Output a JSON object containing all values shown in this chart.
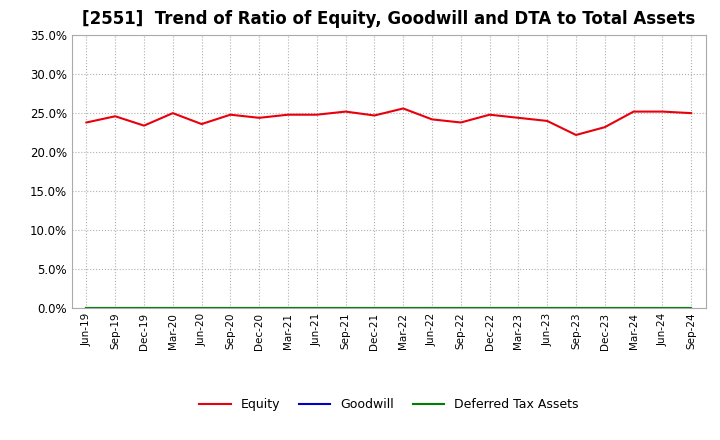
{
  "title": "[2551]  Trend of Ratio of Equity, Goodwill and DTA to Total Assets",
  "x_labels": [
    "Jun-19",
    "Sep-19",
    "Dec-19",
    "Mar-20",
    "Jun-20",
    "Sep-20",
    "Dec-20",
    "Mar-21",
    "Jun-21",
    "Sep-21",
    "Dec-21",
    "Mar-22",
    "Jun-22",
    "Sep-22",
    "Dec-22",
    "Mar-23",
    "Jun-23",
    "Sep-23",
    "Dec-23",
    "Mar-24",
    "Jun-24",
    "Sep-24"
  ],
  "equity": [
    0.238,
    0.246,
    0.234,
    0.25,
    0.236,
    0.248,
    0.244,
    0.248,
    0.248,
    0.252,
    0.247,
    0.256,
    0.242,
    0.238,
    0.248,
    0.244,
    0.24,
    0.222,
    0.232,
    0.252,
    0.252,
    0.25
  ],
  "goodwill": [
    0.0,
    0.0,
    0.0,
    0.0,
    0.0,
    0.0,
    0.0,
    0.0,
    0.0,
    0.0,
    0.0,
    0.0,
    0.0,
    0.0,
    0.0,
    0.0,
    0.0,
    0.0,
    0.0,
    0.0,
    0.0,
    0.0
  ],
  "dta": [
    0.0,
    0.0,
    0.0,
    0.0,
    0.0,
    0.0,
    0.0,
    0.0,
    0.0,
    0.0,
    0.0,
    0.0,
    0.0,
    0.0,
    0.0,
    0.0,
    0.0,
    0.0,
    0.0,
    0.0,
    0.0,
    0.0
  ],
  "equity_color": "#e8000d",
  "goodwill_color": "#0000cc",
  "dta_color": "#008000",
  "ylim": [
    0.0,
    0.35
  ],
  "yticks": [
    0.0,
    0.05,
    0.1,
    0.15,
    0.2,
    0.25,
    0.3,
    0.35
  ],
  "background_color": "#ffffff",
  "plot_bg_color": "#ffffff",
  "grid_color": "#b0b0b0",
  "title_fontsize": 12,
  "legend_labels": [
    "Equity",
    "Goodwill",
    "Deferred Tax Assets"
  ]
}
